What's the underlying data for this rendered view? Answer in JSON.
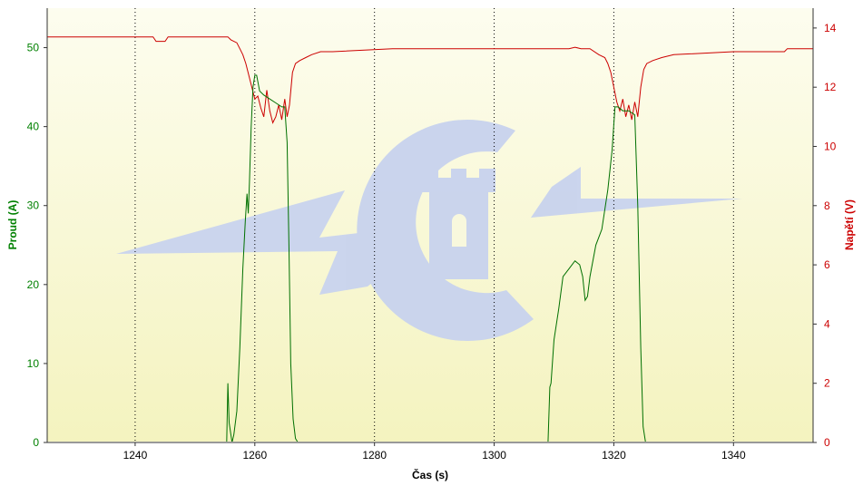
{
  "chart_data": {
    "type": "line",
    "xlabel": "Čas (s)",
    "ylabel_left": "Proud (A)",
    "ylabel_right": "Napětí (V)",
    "xlim": [
      1225.3,
      1353.3
    ],
    "ylim_left": [
      0,
      55
    ],
    "ylim_right": [
      0,
      14.67
    ],
    "x_ticks": [
      1240,
      1260,
      1280,
      1300,
      1320,
      1340
    ],
    "y_ticks_left": [
      0,
      10,
      20,
      30,
      40,
      50
    ],
    "y_ticks_right": [
      0,
      2,
      4,
      6,
      8,
      10,
      12,
      14
    ],
    "grid": "vertical dotted at x ticks",
    "colors": {
      "current": "#007000",
      "voltage": "#cc0000",
      "left_axis": "#008000",
      "right_axis": "#cc0000",
      "background_top": "#fdfdef",
      "background_bottom": "#f4f3bf",
      "watermark": "#c8d3ee"
    },
    "series": [
      {
        "name": "Proud (A)",
        "axis": "left",
        "color": "#007000",
        "x": [
          1225.3,
          1255.3,
          1255.5,
          1255.7,
          1256.2,
          1256.5,
          1257.0,
          1257.5,
          1258.0,
          1258.4,
          1258.7,
          1258.9,
          1259.1,
          1259.4,
          1259.7,
          1260.0,
          1260.3,
          1260.8,
          1261.5,
          1262.5,
          1263.5,
          1264.5,
          1265.0,
          1265.4,
          1265.7,
          1266.0,
          1266.4,
          1266.8,
          1267.2,
          1268.0,
          1309.0,
          1309.3,
          1309.5,
          1310.0,
          1310.8,
          1311.5,
          1312.5,
          1313.5,
          1314.3,
          1314.8,
          1315.2,
          1315.6,
          1316.0,
          1317.0,
          1318.0,
          1319.0,
          1319.7,
          1320.2,
          1320.7,
          1321.5,
          1322.5,
          1323.5,
          1324.0,
          1324.5,
          1324.9,
          1325.3,
          1326.0,
          1353.3
        ],
        "y": [
          0,
          0,
          7.5,
          2.5,
          0,
          1.0,
          4.0,
          12.0,
          22.0,
          28.0,
          31.5,
          29.0,
          33.0,
          40.0,
          45.0,
          46.5,
          46.5,
          44.5,
          44.0,
          43.5,
          43.0,
          42.5,
          42.5,
          38.0,
          25.0,
          10.0,
          3.0,
          0.5,
          0,
          0,
          0,
          7.0,
          7.5,
          13.0,
          17.0,
          21.0,
          22.0,
          23.0,
          22.5,
          21.0,
          18.0,
          18.5,
          21.0,
          25.0,
          27.0,
          32.0,
          37.0,
          42.5,
          42.5,
          42.0,
          42.0,
          41.5,
          30.0,
          12.0,
          2.0,
          0,
          0,
          0
        ]
      },
      {
        "name": "Napětí (V)",
        "axis": "right",
        "color": "#cc0000",
        "x": [
          1225.3,
          1238.0,
          1243.0,
          1243.5,
          1245.0,
          1245.5,
          1255.5,
          1256.0,
          1257.0,
          1257.5,
          1258.0,
          1258.5,
          1259.0,
          1259.5,
          1260.0,
          1260.5,
          1261.0,
          1261.5,
          1262.0,
          1262.5,
          1263.0,
          1263.5,
          1264.0,
          1264.5,
          1265.0,
          1265.4,
          1265.8,
          1266.3,
          1266.8,
          1267.5,
          1268.5,
          1269.5,
          1271.0,
          1273.0,
          1283.0,
          1288.0,
          1312.5,
          1313.5,
          1314.5,
          1316.0,
          1317.5,
          1318.5,
          1319.0,
          1319.5,
          1320.0,
          1320.5,
          1321.0,
          1321.5,
          1322.0,
          1322.5,
          1323.0,
          1323.5,
          1324.0,
          1324.5,
          1325.0,
          1325.5,
          1326.5,
          1328.0,
          1330.0,
          1340.0,
          1348.5,
          1349.0,
          1353.3
        ],
        "y": [
          13.7,
          13.7,
          13.7,
          13.55,
          13.55,
          13.7,
          13.7,
          13.6,
          13.5,
          13.3,
          13.1,
          12.8,
          12.4,
          12.0,
          11.6,
          11.7,
          11.3,
          11.0,
          11.9,
          11.2,
          10.8,
          11.0,
          11.4,
          10.9,
          11.6,
          11.0,
          11.4,
          12.5,
          12.8,
          12.9,
          13.0,
          13.1,
          13.2,
          13.2,
          13.3,
          13.3,
          13.3,
          13.35,
          13.3,
          13.3,
          13.1,
          13.0,
          12.8,
          12.5,
          12.0,
          11.5,
          11.2,
          11.6,
          11.0,
          11.4,
          10.9,
          11.5,
          11.0,
          12.0,
          12.6,
          12.8,
          12.9,
          13.0,
          13.1,
          13.2,
          13.2,
          13.3,
          13.3
        ]
      }
    ]
  }
}
